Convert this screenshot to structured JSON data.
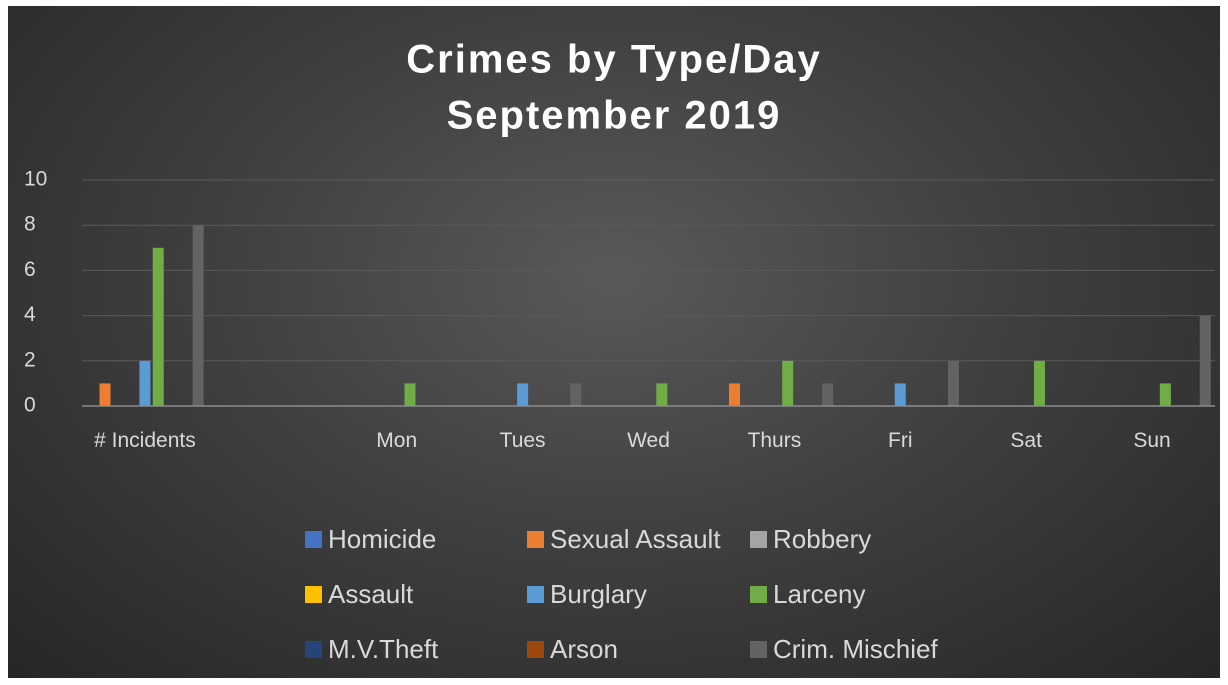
{
  "chart_data": {
    "type": "bar",
    "title": "Crimes by Type/Day",
    "subtitle": "September 2019",
    "categories": [
      "# Incidents",
      null,
      "Mon",
      "Tues",
      "Wed",
      "Thurs",
      "Fri",
      "Sat",
      "Sun"
    ],
    "series": [
      {
        "name": "Homicide",
        "color": "#4472c4",
        "values": [
          0,
          null,
          0,
          0,
          0,
          0,
          0,
          0,
          0
        ]
      },
      {
        "name": "Sexual Assault",
        "color": "#ed7d31",
        "values": [
          1,
          null,
          0,
          0,
          0,
          1,
          0,
          0,
          0
        ]
      },
      {
        "name": "Robbery",
        "color": "#a5a5a5",
        "values": [
          0,
          null,
          0,
          0,
          0,
          0,
          0,
          0,
          0
        ]
      },
      {
        "name": "Assault",
        "color": "#ffc000",
        "values": [
          0,
          null,
          0,
          0,
          0,
          0,
          0,
          0,
          0
        ]
      },
      {
        "name": "Burglary",
        "color": "#5b9bd5",
        "values": [
          2,
          null,
          0,
          1,
          0,
          0,
          1,
          0,
          0
        ]
      },
      {
        "name": "Larceny",
        "color": "#70ad47",
        "values": [
          7,
          null,
          1,
          0,
          1,
          2,
          0,
          2,
          1
        ]
      },
      {
        "name": "M.V.Theft",
        "color": "#264478",
        "values": [
          0,
          null,
          0,
          0,
          0,
          0,
          0,
          0,
          0
        ]
      },
      {
        "name": "Arson",
        "color": "#9e480e",
        "values": [
          0,
          null,
          0,
          0,
          0,
          0,
          0,
          0,
          0
        ]
      },
      {
        "name": "Crim. Mischief",
        "color": "#636363",
        "values": [
          8,
          null,
          0,
          1,
          0,
          1,
          2,
          0,
          4
        ]
      }
    ],
    "ylim": [
      0,
      10
    ],
    "yticks": [
      0,
      2,
      4,
      6,
      8,
      10
    ],
    "grid": true,
    "legend": "bottom"
  }
}
